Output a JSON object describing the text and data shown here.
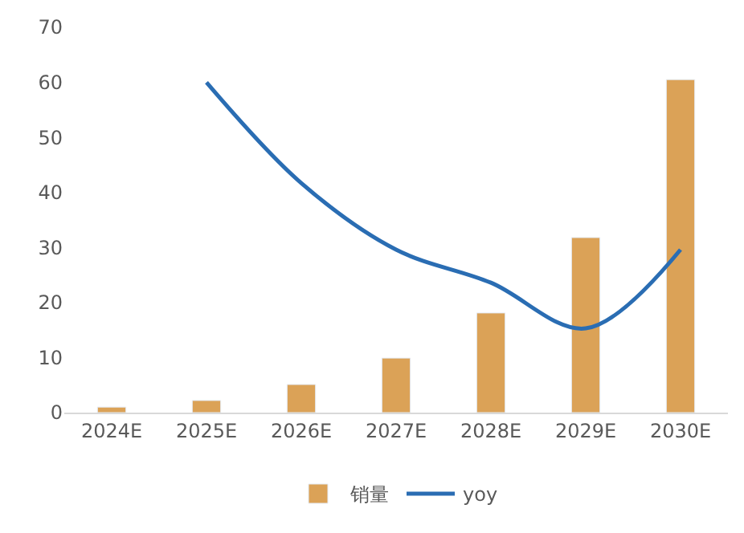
{
  "chart_data": {
    "type": "bar",
    "categories": [
      "2024E",
      "2025E",
      "2026E",
      "2027E",
      "2028E",
      "2029E",
      "2030E"
    ],
    "series": [
      {
        "name": "销量",
        "color": "#dba257",
        "values": [
          1,
          2.2,
          5.1,
          9.9,
          18.1,
          31.8,
          60.5
        ]
      },
      {
        "name": "yoy",
        "type": "line",
        "color": "#2a6db3",
        "values": [
          null,
          60,
          41.7,
          29.6,
          23.6,
          15.3,
          29.6
        ]
      }
    ],
    "ylim": [
      0,
      70
    ],
    "yticks": [
      0,
      10,
      20,
      30,
      40,
      50,
      60,
      70
    ],
    "grid": false,
    "legend": "bottom",
    "marker": "none",
    "line_style": "solid"
  }
}
